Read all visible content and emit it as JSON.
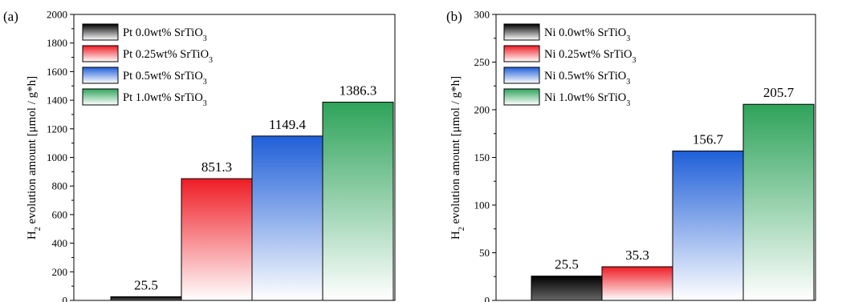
{
  "panels": [
    {
      "panel_label": "(a)",
      "ylabel_sub": "2",
      "ylabel_prefix": "H",
      "ylabel_rest": " evolution amount [μmol / g*h]",
      "legend": [
        {
          "main": "Pt 0.0wt% SrTiO",
          "sub": "3"
        },
        {
          "main": "Pt 0.25wt% SrTiO",
          "sub": "3"
        },
        {
          "main": "Pt 0.5wt% SrTiO",
          "sub": "3"
        },
        {
          "main": "Pt 1.0wt% SrTiO",
          "sub": "3"
        }
      ],
      "value_labels": [
        "25.5",
        "851.3",
        "1149.4",
        "1386.3"
      ],
      "ytick_labels": [
        "0",
        "200",
        "400",
        "600",
        "800",
        "1000",
        "1200",
        "1400",
        "1600",
        "1800",
        "2000"
      ]
    },
    {
      "panel_label": "(b)",
      "ylabel_sub": "2",
      "ylabel_prefix": "H",
      "ylabel_rest": " evolution amount [μmol / g*h]",
      "legend": [
        {
          "main": "Ni 0.0wt% SrTiO",
          "sub": "3"
        },
        {
          "main": "Ni 0.25wt% SrTiO",
          "sub": "3"
        },
        {
          "main": "Ni 0.5wt% SrTiO",
          "sub": "3"
        },
        {
          "main": "Ni 1.0wt% SrTiO",
          "sub": "3"
        }
      ],
      "value_labels": [
        "25.5",
        "35.3",
        "156.7",
        "205.7"
      ],
      "ytick_labels": [
        "0",
        "50",
        "100",
        "150",
        "200",
        "250",
        "300"
      ]
    }
  ],
  "chart_data": [
    {
      "type": "bar",
      "title": "",
      "ylabel": "H2 evolution amount [μmol / g*h]",
      "xlabel": "",
      "ylim": [
        0,
        2000
      ],
      "yticks": [
        0,
        200,
        400,
        600,
        800,
        1000,
        1200,
        1400,
        1600,
        1800,
        2000
      ],
      "legend_position": "top-left",
      "series": [
        {
          "name": "Pt 0.0wt% SrTiO3",
          "values": [
            25.5
          ],
          "color": "#000000"
        },
        {
          "name": "Pt 0.25wt% SrTiO3",
          "values": [
            851.3
          ],
          "color": "#ee1c24"
        },
        {
          "name": "Pt 0.5wt% SrTiO3",
          "values": [
            1149.4
          ],
          "color": "#1f5fd8"
        },
        {
          "name": "Pt 1.0wt% SrTiO3",
          "values": [
            1386.3
          ],
          "color": "#2ea35a"
        }
      ]
    },
    {
      "type": "bar",
      "title": "",
      "ylabel": "H2 evolution amount [μmol / g*h]",
      "xlabel": "",
      "ylim": [
        0,
        300
      ],
      "yticks": [
        0,
        50,
        100,
        150,
        200,
        250,
        300
      ],
      "legend_position": "top-left",
      "series": [
        {
          "name": "Ni 0.0wt% SrTiO3",
          "values": [
            25.5
          ],
          "color": "#000000"
        },
        {
          "name": "Ni 0.25wt% SrTiO3",
          "values": [
            35.3
          ],
          "color": "#ee1c24"
        },
        {
          "name": "Ni 0.5wt% SrTiO3",
          "values": [
            156.7
          ],
          "color": "#1f5fd8"
        },
        {
          "name": "Ni 1.0wt% SrTiO3",
          "values": [
            205.7
          ],
          "color": "#2ea35a"
        }
      ]
    }
  ]
}
